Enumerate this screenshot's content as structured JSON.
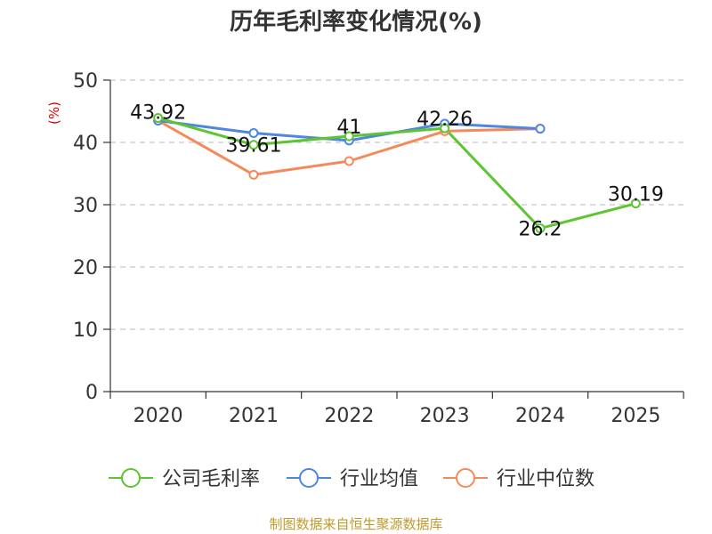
{
  "chart_data": {
    "type": "line",
    "title": "历年毛利率变化情况(%)",
    "ylabel": "(%)",
    "ylim": [
      0,
      50
    ],
    "yticks": [
      0,
      10,
      20,
      30,
      40,
      50
    ],
    "grid": true,
    "legend_position": "bottom",
    "categories": [
      "2020",
      "2021",
      "2022",
      "2023",
      "2024",
      "2025"
    ],
    "series": [
      {
        "name": "公司毛利率",
        "color": "#5cc531",
        "values": [
          43.92,
          39.61,
          41,
          42.26,
          26.2,
          30.19
        ],
        "labels": [
          "43.92",
          "39.61",
          "41",
          "42.26",
          "26.2",
          "30.19"
        ]
      },
      {
        "name": "行业均值",
        "color": "#4f86e0",
        "values": [
          43.5,
          41.5,
          40.3,
          43.0,
          42.2,
          null
        ]
      },
      {
        "name": "行业中位数",
        "color": "#f48a5a",
        "values": [
          43.5,
          34.8,
          37.0,
          41.8,
          42.2,
          null
        ]
      }
    ]
  },
  "footer": {
    "source": "制图数据来自恒生聚源数据库"
  }
}
